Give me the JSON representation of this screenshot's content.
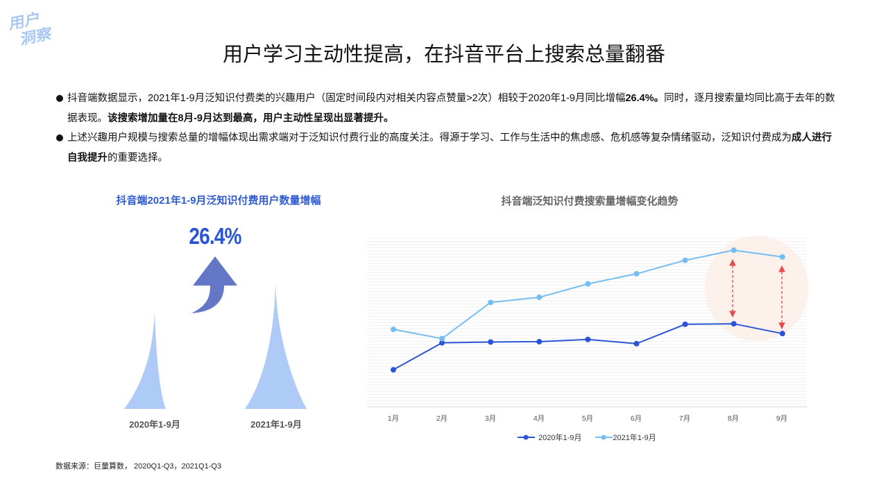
{
  "corner_tag": {
    "line1": "用户",
    "line2": "洞察",
    "color": "#a9c8f5"
  },
  "page_title": "用户学习主动性提高，在抖音平台上搜索总量翻番",
  "bullets": [
    {
      "segments": [
        {
          "text": "抖音端数据显示，2021年1-9月泛知识付费类的兴趣用户（固定时间段内对相关内容点赞量>2次）相较于2020年1-9月同比增幅",
          "bold": false
        },
        {
          "text": "26.4%。",
          "bold": true
        },
        {
          "text": "同时，逐月搜索量均同比高于去年的数据表现。",
          "bold": false
        },
        {
          "text": "该搜索增加量在8月-9月达到最高，用户主动性呈现出显著提升。",
          "bold": true
        }
      ]
    },
    {
      "segments": [
        {
          "text": "上述兴趣用户规模与搜索总量的增幅体现出需求端对于泛知识付费行业的高度关注。得源于学习、工作与生活中的焦虑感、危机感等复杂情绪驱动，泛知识付费成为",
          "bold": false
        },
        {
          "text": "成人进行自我提升",
          "bold": true
        },
        {
          "text": "的重要选择。",
          "bold": false
        }
      ]
    }
  ],
  "left_panel": {
    "title": "抖音端2021年1-9月泛知识付费用户数量增幅",
    "growth_value": "26.4%",
    "bars": [
      {
        "label": "2020年1-9月"
      },
      {
        "label": "2021年1-9月"
      }
    ],
    "colors": {
      "title": "#2f5bd2",
      "value": "#2b54d6",
      "arrow": "#6476c6",
      "peak": "#aecbf7"
    }
  },
  "right_panel": {
    "title": "抖音端泛知识付费搜索量增幅变化趋势"
  },
  "chart_data": [
    {
      "type": "bar",
      "title": "抖音端2021年1-9月泛知识付费用户数量增幅",
      "categories": [
        "2020年1-9月",
        "2021年1-9月"
      ],
      "values": [
        100,
        126.4
      ],
      "annotation": "26.4%",
      "xlabel": "",
      "ylabel": "",
      "grid": false,
      "note": "Rendered as pointed peaks; relative heights only"
    },
    {
      "type": "line",
      "title": "抖音端泛知识付费搜索量增幅变化趋势",
      "categories": [
        "1月",
        "2月",
        "3月",
        "4月",
        "5月",
        "6月",
        "7月",
        "8月",
        "9月"
      ],
      "series": [
        {
          "name": "2020年1-9月",
          "color": "#2b54d6",
          "values": [
            22,
            38,
            38.5,
            38.7,
            40,
            37.5,
            49,
            49.3,
            43.5
          ]
        },
        {
          "name": "2021年1-9月",
          "color": "#74bdf0",
          "values": [
            46,
            40.5,
            62,
            65,
            73,
            79,
            87,
            93,
            89
          ]
        }
      ],
      "xlabel": "",
      "ylabel": "",
      "ylim": [
        0,
        100
      ],
      "y_axis_visible": false,
      "grid": true,
      "legend_position": "bottom",
      "annotations": [
        {
          "type": "highlight-circle",
          "months": [
            "8月",
            "9月"
          ],
          "color": "#fdeee9"
        },
        {
          "type": "double-arrow",
          "month": "8月",
          "color": "#e84b4b"
        },
        {
          "type": "double-arrow",
          "month": "9月",
          "color": "#e84b4b"
        }
      ]
    }
  ],
  "source_note": "数据来源：巨量算数， 2020Q1-Q3，2021Q1-Q3"
}
